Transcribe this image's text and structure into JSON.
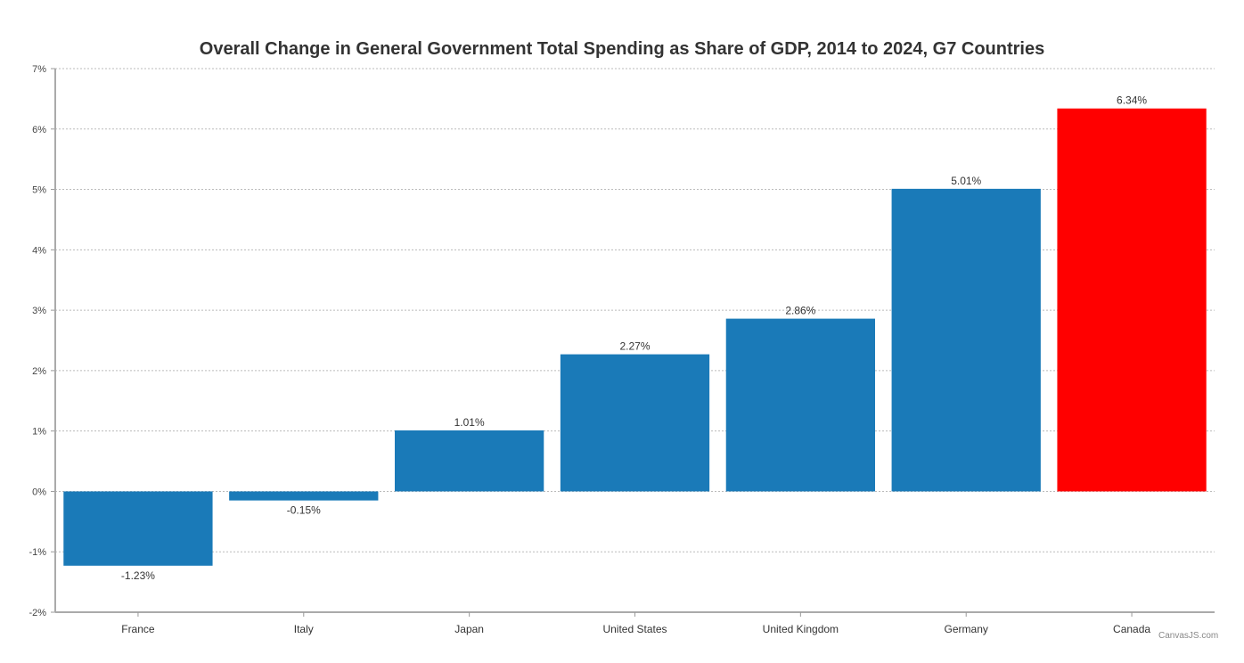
{
  "chart_data": {
    "type": "bar",
    "title": "Overall Change in General Government Total Spending as Share of GDP, 2014 to 2024, G7 Countries",
    "xlabel": "",
    "ylabel": "",
    "categories": [
      "France",
      "Italy",
      "Japan",
      "United States",
      "United Kingdom",
      "Germany",
      "Canada"
    ],
    "values": [
      -1.23,
      -0.15,
      1.01,
      2.27,
      2.86,
      5.01,
      6.34
    ],
    "data_labels": [
      "-1.23%",
      "-0.15%",
      "1.01%",
      "2.27%",
      "2.86%",
      "5.01%",
      "6.34%"
    ],
    "colors": [
      "#1a7ab8",
      "#1a7ab8",
      "#1a7ab8",
      "#1a7ab8",
      "#1a7ab8",
      "#1a7ab8",
      "#ff0000"
    ],
    "ylim": [
      -2,
      7
    ],
    "yticks": [
      -2,
      -1,
      0,
      1,
      2,
      3,
      4,
      5,
      6,
      7
    ],
    "ytick_labels": [
      "-2%",
      "-1%",
      "0%",
      "1%",
      "2%",
      "3%",
      "4%",
      "5%",
      "6%",
      "7%"
    ],
    "grid": true,
    "credit": "CanvasJS.com"
  }
}
